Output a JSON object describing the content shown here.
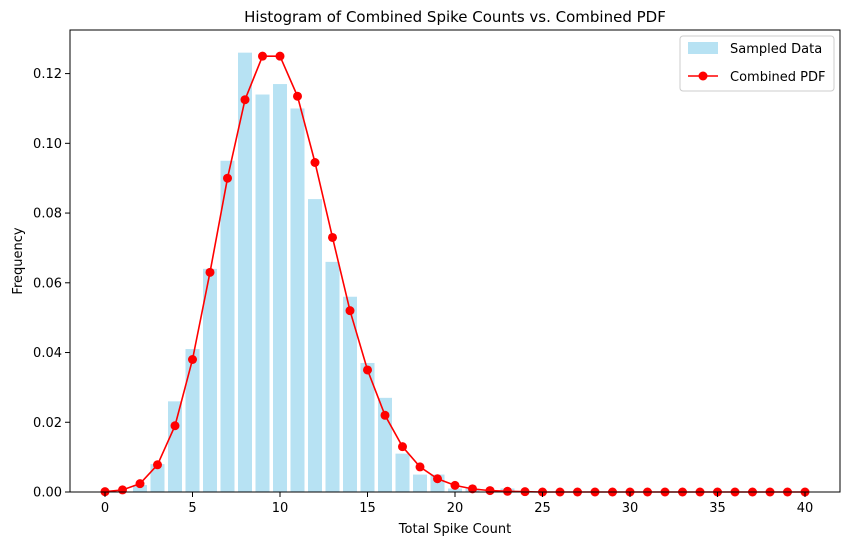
{
  "chart_data": {
    "type": "bar",
    "title": "Histogram of Combined Spike Counts vs. Combined PDF",
    "xlabel": "Total Spike Count",
    "ylabel": "Frequency",
    "xlim": [
      -2,
      42
    ],
    "ylim": [
      0,
      0.1325
    ],
    "xticks": [
      0,
      5,
      10,
      15,
      20,
      25,
      30,
      35,
      40
    ],
    "yticks": [
      0.0,
      0.02,
      0.04,
      0.06,
      0.08,
      0.1,
      0.12
    ],
    "ytick_labels": [
      "0.00",
      "0.02",
      "0.04",
      "0.06",
      "0.08",
      "0.10",
      "0.12"
    ],
    "grid": false,
    "legend_position": "top-right",
    "series": [
      {
        "name": "Sampled Data",
        "kind": "bar",
        "color": "#87CEEB",
        "x": [
          0,
          1,
          2,
          3,
          4,
          5,
          6,
          7,
          8,
          9,
          10,
          11,
          12,
          13,
          14,
          15,
          16,
          17,
          18,
          19,
          20,
          21,
          22,
          23,
          24,
          25,
          26,
          27,
          28,
          29,
          30,
          31,
          32,
          33,
          34,
          35,
          36,
          37,
          38,
          39,
          40
        ],
        "values": [
          0,
          0,
          0.002,
          0.008,
          0.026,
          0.041,
          0.064,
          0.095,
          0.126,
          0.114,
          0.117,
          0.11,
          0.084,
          0.066,
          0.056,
          0.037,
          0.027,
          0.011,
          0.005,
          0.005,
          0.001,
          0.001,
          0,
          0.001,
          0,
          0,
          0,
          0,
          0,
          0,
          0,
          0,
          0,
          0,
          0,
          0,
          0,
          0,
          0,
          0,
          0
        ]
      },
      {
        "name": "Combined PDF",
        "kind": "line",
        "color": "#FF0000",
        "x": [
          0,
          1,
          2,
          3,
          4,
          5,
          6,
          7,
          8,
          9,
          10,
          11,
          12,
          13,
          14,
          15,
          16,
          17,
          18,
          19,
          20,
          21,
          22,
          23,
          24,
          25,
          26,
          27,
          28,
          29,
          30,
          31,
          32,
          33,
          34,
          35,
          36,
          37,
          38,
          39,
          40
        ],
        "values": [
          0.0001,
          0.0006,
          0.0024,
          0.0078,
          0.019,
          0.038,
          0.063,
          0.09,
          0.1125,
          0.125,
          0.125,
          0.1135,
          0.0945,
          0.073,
          0.052,
          0.035,
          0.022,
          0.013,
          0.0072,
          0.0038,
          0.0019,
          0.0009,
          0.0004,
          0.0002,
          0.0001,
          0,
          0,
          0,
          0,
          0,
          0,
          0,
          0,
          0,
          0,
          0,
          0,
          0,
          0,
          0,
          0
        ]
      }
    ]
  }
}
